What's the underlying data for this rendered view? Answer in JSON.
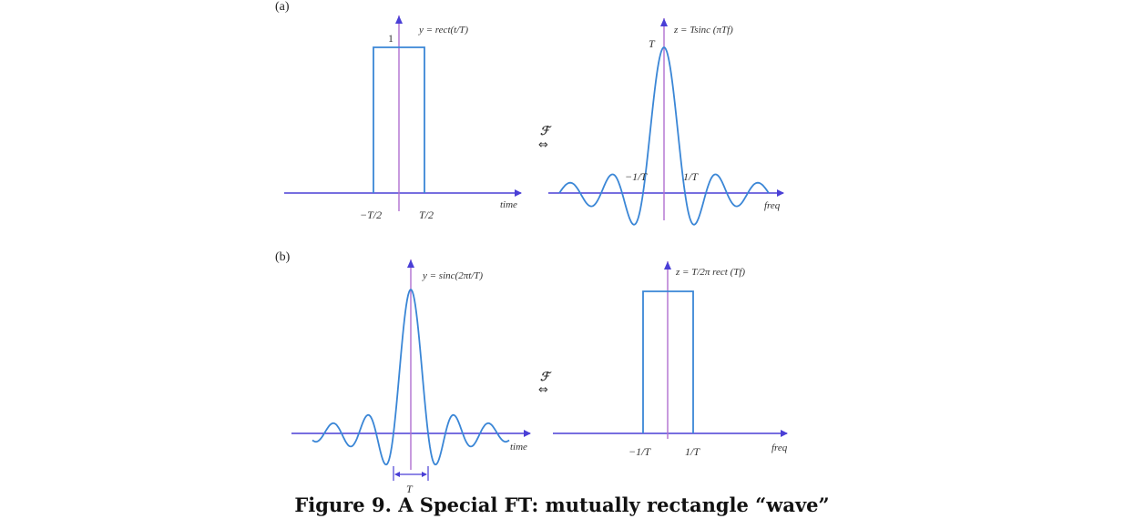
{
  "caption": "Figure 9. A Special FT: mutually rectangle “wave”",
  "colors": {
    "curve": "#3a86d6",
    "axis": "#4a3fd6",
    "vline": "#b070d0",
    "text": "#333333"
  },
  "panels": {
    "a": {
      "label": "(a)",
      "left": {
        "height_label": "1",
        "formula": "y = rect(t/T)",
        "x_axis_label": "time",
        "ticks": [
          "−T/2",
          "T/2"
        ]
      },
      "transform_symbol": "ℱ",
      "transform_arrow": "⇔",
      "right": {
        "formula": "z = Tsinc (πTf)",
        "peak_label": "T",
        "x_axis_label": "freq",
        "ticks": [
          "−1/T",
          "1/T"
        ]
      }
    },
    "b": {
      "label": "(b)",
      "left": {
        "formula": "y = sinc(2πt/T)",
        "x_axis_label": "time",
        "width_label": "T"
      },
      "transform_symbol": "ℱ",
      "transform_arrow": "⇔",
      "right": {
        "formula": "z = T/2π rect (Tf)",
        "x_axis_label": "freq",
        "ticks": [
          "−1/T",
          "1/T"
        ]
      }
    }
  }
}
